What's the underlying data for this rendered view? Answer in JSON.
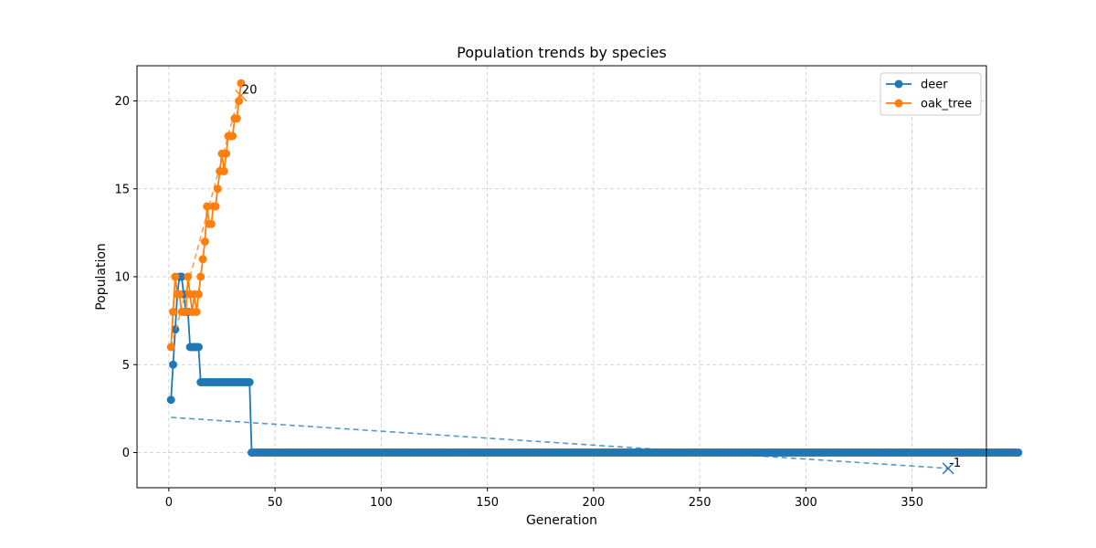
{
  "chart_data": {
    "type": "line",
    "title": "Population trends by species",
    "xlabel": "Generation",
    "ylabel": "Population",
    "xlim": [
      -15,
      385
    ],
    "ylim": [
      -2,
      22
    ],
    "xticks": [
      0,
      50,
      100,
      150,
      200,
      250,
      300,
      350
    ],
    "yticks": [
      0,
      5,
      10,
      15,
      20
    ],
    "grid": true,
    "legend": "top-right",
    "series": [
      {
        "name": "deer",
        "color": "#1f77b4",
        "marker": "circle",
        "x_start": 1,
        "values": [
          3,
          5,
          7,
          9,
          10,
          10,
          9,
          8,
          8,
          6,
          6,
          6,
          6,
          6,
          4,
          4,
          4,
          4,
          4,
          4,
          4,
          4,
          4,
          4,
          4,
          4,
          4,
          4,
          4,
          4,
          4,
          4,
          4,
          4,
          4,
          4,
          4,
          4,
          0,
          0,
          0,
          0,
          0,
          0,
          0,
          0,
          0,
          0,
          0,
          0,
          0,
          0,
          0,
          0,
          0,
          0,
          0,
          0,
          0,
          0,
          0,
          0,
          0,
          0,
          0,
          0,
          0,
          0,
          0,
          0,
          0,
          0,
          0,
          0,
          0,
          0,
          0,
          0,
          0,
          0,
          0,
          0,
          0,
          0,
          0,
          0,
          0,
          0,
          0,
          0,
          0,
          0,
          0,
          0,
          0,
          0,
          0,
          0,
          0,
          0,
          0,
          0,
          0,
          0,
          0,
          0,
          0,
          0,
          0,
          0,
          0,
          0,
          0,
          0,
          0,
          0,
          0,
          0,
          0,
          0,
          0,
          0,
          0,
          0,
          0,
          0,
          0,
          0,
          0,
          0,
          0,
          0,
          0,
          0,
          0,
          0,
          0,
          0,
          0,
          0,
          0,
          0,
          0,
          0,
          0,
          0,
          0,
          0,
          0,
          0,
          0,
          0,
          0,
          0,
          0,
          0,
          0,
          0,
          0,
          0,
          0,
          0,
          0,
          0,
          0,
          0,
          0,
          0,
          0,
          0,
          0,
          0,
          0,
          0,
          0,
          0,
          0,
          0,
          0,
          0,
          0,
          0,
          0,
          0,
          0,
          0,
          0,
          0,
          0,
          0,
          0,
          0,
          0,
          0,
          0,
          0,
          0,
          0,
          0,
          0,
          0,
          0,
          0,
          0,
          0,
          0,
          0,
          0,
          0,
          0,
          0,
          0,
          0,
          0,
          0,
          0,
          0,
          0,
          0,
          0,
          0,
          0,
          0,
          0,
          0,
          0,
          0,
          0,
          0,
          0,
          0,
          0,
          0,
          0,
          0,
          0,
          0,
          0,
          0,
          0,
          0,
          0,
          0,
          0,
          0,
          0,
          0,
          0,
          0,
          0,
          0,
          0,
          0,
          0,
          0,
          0,
          0,
          0,
          0,
          0,
          0,
          0,
          0,
          0,
          0,
          0,
          0,
          0,
          0,
          0,
          0,
          0,
          0,
          0,
          0,
          0,
          0,
          0,
          0,
          0,
          0,
          0,
          0,
          0,
          0,
          0,
          0,
          0,
          0,
          0,
          0,
          0,
          0,
          0,
          0,
          0,
          0,
          0,
          0,
          0,
          0,
          0,
          0,
          0,
          0,
          0,
          0,
          0,
          0,
          0,
          0,
          0,
          0,
          0,
          0,
          0,
          0,
          0,
          0,
          0,
          0,
          0,
          0,
          0,
          0,
          0,
          0,
          0,
          0,
          0,
          0,
          0,
          0,
          0,
          0,
          0,
          0,
          0,
          0,
          0,
          0,
          0,
          0,
          0,
          0,
          0,
          0,
          0,
          0,
          0,
          0,
          0,
          0,
          0,
          0,
          0,
          0,
          0,
          0,
          0,
          0,
          0,
          0,
          0,
          0,
          0,
          0,
          0,
          0,
          0,
          0,
          0,
          0,
          0,
          0,
          0,
          0,
          0,
          0,
          0,
          0,
          0,
          0,
          0,
          0,
          0,
          0,
          0,
          0,
          0,
          0,
          0,
          0,
          0,
          0,
          0,
          0,
          0,
          0,
          0
        ],
        "trend": {
          "x": [
            1,
            367
          ],
          "y": [
            2.0,
            -0.9
          ]
        },
        "forecast": {
          "x": 367,
          "y": -0.9,
          "label": "-1"
        }
      },
      {
        "name": "oak_tree",
        "color": "#ff7f0e",
        "marker": "circle",
        "x_start": 1,
        "values": [
          6,
          8,
          10,
          9,
          9,
          8,
          8,
          8,
          10,
          9,
          8,
          9,
          8,
          9,
          10,
          11,
          12,
          14,
          13,
          13,
          14,
          14,
          15,
          16,
          17,
          16,
          17,
          18,
          18,
          18,
          19,
          19,
          20,
          21
        ],
        "trend": {
          "x": [
            1,
            33
          ],
          "y": [
            6.0,
            20.3
          ]
        },
        "forecast": {
          "x": 34,
          "y": 20.3,
          "label": "20"
        }
      }
    ]
  }
}
